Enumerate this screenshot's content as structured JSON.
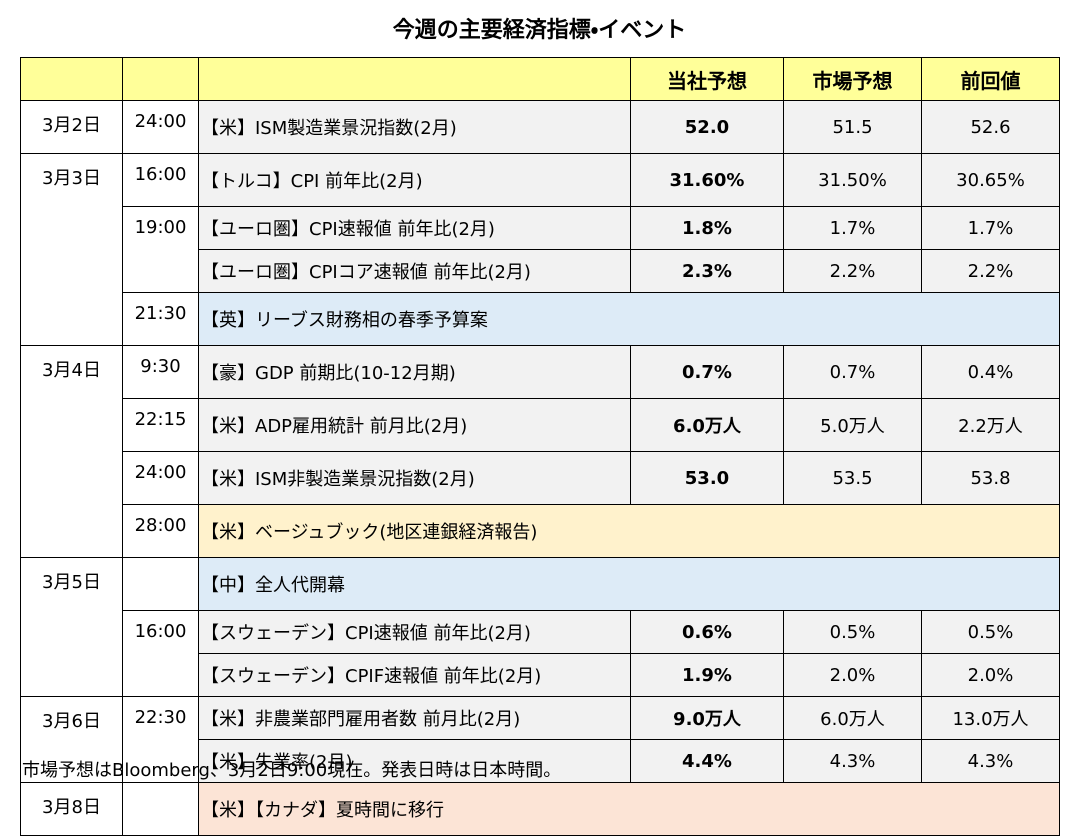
{
  "title": "今週の主要経済指標・イベント",
  "table": {
    "header": [
      "当社予想",
      "市場予想",
      "前回値"
    ],
    "header_color": "#ffff99",
    "days": [
      {
        "date": "3月2日",
        "slots": [
          {
            "time": "24:00",
            "rows": [
              {
                "event": "【米】ISM製造業景況指数(2月)",
                "values": [
                  "52.0",
                  "51.5",
                  "52.6"
                ]
              }
            ]
          }
        ]
      },
      {
        "date": "3月3日",
        "slots": [
          {
            "time": "16:00",
            "rows": [
              {
                "event": "【トルコ】CPI 前年比(2月)",
                "values": [
                  "31.60%",
                  "31.50%",
                  "30.65%"
                ]
              }
            ]
          },
          {
            "time": "19:00",
            "rows": [
              {
                "event": "【ユーロ圏】CPI速報値 前年比(2月)",
                "values": [
                  "1.8%",
                  "1.7%",
                  "1.7%"
                ]
              },
              {
                "event": "【ユーロ圏】CPIコア速報値 前年比(2月)",
                "values": [
                  "2.3%",
                  "2.2%",
                  "2.2%"
                ]
              }
            ]
          },
          {
            "time": "21:30",
            "rows": [
              {
                "event": "【英】リーブス財務相の春季予算案",
                "color": "#ddebf7"
              }
            ]
          }
        ]
      },
      {
        "date": "3月4日",
        "slots": [
          {
            "time": "9:30",
            "rows": [
              {
                "event": "【豪】GDP 前期比(10-12月期)",
                "values": [
                  "0.7%",
                  "0.7%",
                  "0.4%"
                ]
              }
            ]
          },
          {
            "time": "22:15",
            "rows": [
              {
                "event": "【米】ADP雇用統計 前月比(2月)",
                "values": [
                  "6.0万人",
                  "5.0万人",
                  "2.2万人"
                ]
              }
            ]
          },
          {
            "time": "24:00",
            "rows": [
              {
                "event": "【米】ISM非製造業景況指数(2月)",
                "values": [
                  "53.0",
                  "53.5",
                  "53.8"
                ]
              }
            ]
          },
          {
            "time": "28:00",
            "rows": [
              {
                "event": "【米】ベージュブック(地区連銀経済報告)",
                "color": "#fff2cc"
              }
            ]
          }
        ]
      },
      {
        "date": "3月5日",
        "slots": [
          {
            "rows": [
              {
                "event": "【中】全人代開幕",
                "color": "#ddebf7"
              }
            ]
          },
          {
            "time": "16:00",
            "rows": [
              {
                "event": "【スウェーデン】CPI速報値 前年比(2月)",
                "values": [
                  "0.6%",
                  "0.5%",
                  "0.5%"
                ]
              },
              {
                "event": "【スウェーデン】CPIF速報値 前年比(2月)",
                "values": [
                  "1.9%",
                  "2.0%",
                  "2.0%"
                ]
              }
            ]
          }
        ]
      },
      {
        "date": "3月6日",
        "slots": [
          {
            "time": "22:30",
            "rows": [
              {
                "event": "【米】非農業部門雇用者数 前月比(2月)",
                "values": [
                  "9.0万人",
                  "6.0万人",
                  "13.0万人"
                ]
              },
              {
                "event": "【米】失業率(2月)",
                "values": [
                  "4.4%",
                  "4.3%",
                  "4.3%"
                ]
              }
            ]
          }
        ]
      },
      {
        "date": "3月8日",
        "slots": [
          {
            "rows": [
              {
                "event": "【米】【カナダ】夏時間に移行",
                "color": "#fce4d6"
              }
            ]
          }
        ]
      }
    ]
  },
  "note": "市場予想はBloomberg、3月2日9:00現在。発表日時は日本時間。"
}
